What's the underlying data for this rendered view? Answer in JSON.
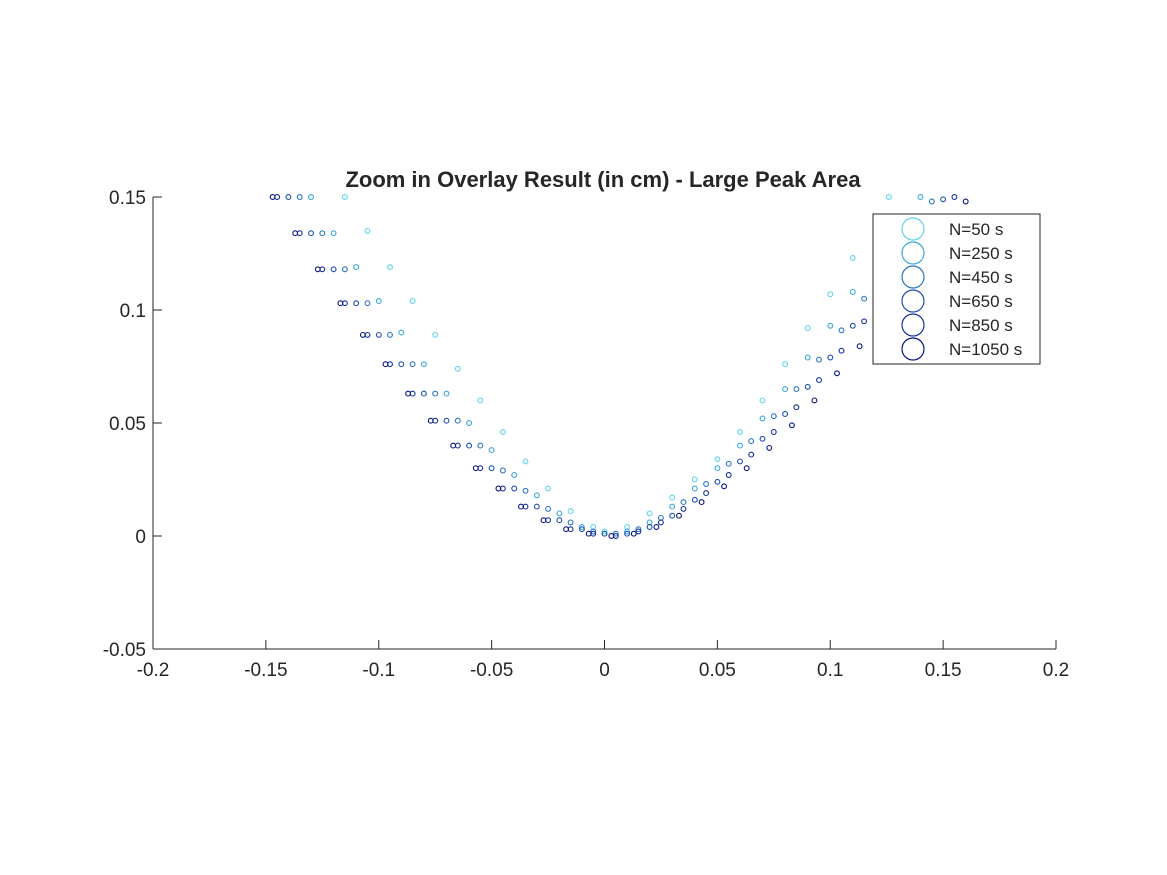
{
  "chart_data": {
    "type": "scatter",
    "title": "Zoom in Overlay Result (in cm) - Large Peak Area",
    "xlabel": "",
    "ylabel": "",
    "xlim": [
      -0.2,
      0.2
    ],
    "ylim": [
      -0.05,
      0.15
    ],
    "x_ticks": [
      "-0.2",
      "-0.15",
      "-0.1",
      "-0.05",
      "0",
      "0.05",
      "0.1",
      "0.15",
      "0.2"
    ],
    "y_ticks": [
      "-0.05",
      "0",
      "0.05",
      "0.1",
      "0.15"
    ],
    "x_tick_values": [
      -0.2,
      -0.15,
      -0.1,
      -0.05,
      0,
      0.05,
      0.1,
      0.15,
      0.2
    ],
    "y_tick_values": [
      -0.05,
      0,
      0.05,
      0.1,
      0.15
    ],
    "grid": false,
    "box": false,
    "legend_position": "top-right",
    "marker": "circle-open",
    "series": [
      {
        "name": "N=50 s",
        "color": "#5fd3f0",
        "x": [
          -0.115,
          -0.105,
          -0.095,
          -0.085,
          -0.075,
          -0.065,
          -0.055,
          -0.045,
          -0.035,
          -0.025,
          -0.015,
          -0.005,
          0.0,
          0.01,
          0.02,
          0.03,
          0.04,
          0.05,
          0.06,
          0.07,
          0.08,
          0.09,
          0.1,
          0.11,
          0.12,
          0.126
        ],
        "y": [
          0.15,
          0.135,
          0.119,
          0.104,
          0.089,
          0.074,
          0.06,
          0.046,
          0.033,
          0.021,
          0.011,
          0.004,
          0.002,
          0.004,
          0.01,
          0.017,
          0.025,
          0.034,
          0.046,
          0.06,
          0.076,
          0.092,
          0.107,
          0.123,
          0.14,
          0.15
        ]
      },
      {
        "name": "N=250 s",
        "color": "#3aa8dc",
        "x": [
          -0.13,
          -0.12,
          -0.11,
          -0.1,
          -0.09,
          -0.08,
          -0.07,
          -0.06,
          -0.05,
          -0.04,
          -0.03,
          -0.02,
          -0.01,
          0.0,
          0.01,
          0.02,
          0.03,
          0.04,
          0.05,
          0.06,
          0.07,
          0.08,
          0.09,
          0.1,
          0.11,
          0.12,
          0.13,
          0.14
        ],
        "y": [
          0.15,
          0.134,
          0.119,
          0.104,
          0.09,
          0.076,
          0.063,
          0.05,
          0.038,
          0.027,
          0.018,
          0.01,
          0.004,
          0.001,
          0.002,
          0.006,
          0.013,
          0.021,
          0.03,
          0.04,
          0.052,
          0.065,
          0.079,
          0.093,
          0.108,
          0.123,
          0.138,
          0.15
        ]
      },
      {
        "name": "N=450 s",
        "color": "#2b74c0",
        "x": [
          -0.135,
          -0.125,
          -0.115,
          -0.105,
          -0.095,
          -0.085,
          -0.075,
          -0.065,
          -0.055,
          -0.045,
          -0.035,
          -0.025,
          -0.015,
          -0.005,
          0.005,
          0.015,
          0.025,
          0.035,
          0.045,
          0.055,
          0.065,
          0.075,
          0.085,
          0.095,
          0.105,
          0.115,
          0.125,
          0.135,
          0.145
        ],
        "y": [
          0.15,
          0.134,
          0.118,
          0.103,
          0.089,
          0.076,
          0.063,
          0.051,
          0.04,
          0.029,
          0.02,
          0.012,
          0.006,
          0.002,
          0.001,
          0.003,
          0.008,
          0.015,
          0.023,
          0.032,
          0.042,
          0.053,
          0.065,
          0.078,
          0.091,
          0.105,
          0.119,
          0.134,
          0.148
        ]
      },
      {
        "name": "N=650 s",
        "color": "#1e4fb0",
        "x": [
          -0.14,
          -0.13,
          -0.12,
          -0.11,
          -0.1,
          -0.09,
          -0.08,
          -0.07,
          -0.06,
          -0.05,
          -0.04,
          -0.03,
          -0.02,
          -0.01,
          0.0,
          0.01,
          0.02,
          0.03,
          0.04,
          0.05,
          0.06,
          0.07,
          0.08,
          0.09,
          0.1,
          0.11,
          0.12,
          0.13,
          0.14,
          0.15
        ],
        "y": [
          0.15,
          0.134,
          0.118,
          0.103,
          0.089,
          0.076,
          0.063,
          0.051,
          0.04,
          0.03,
          0.021,
          0.013,
          0.007,
          0.003,
          0.001,
          0.001,
          0.004,
          0.009,
          0.016,
          0.024,
          0.033,
          0.043,
          0.054,
          0.066,
          0.079,
          0.093,
          0.107,
          0.121,
          0.135,
          0.149
        ]
      },
      {
        "name": "N=850 s",
        "color": "#12309a",
        "x": [
          -0.145,
          -0.135,
          -0.125,
          -0.115,
          -0.105,
          -0.095,
          -0.085,
          -0.075,
          -0.065,
          -0.055,
          -0.045,
          -0.035,
          -0.025,
          -0.015,
          -0.005,
          0.005,
          0.015,
          0.025,
          0.035,
          0.045,
          0.055,
          0.065,
          0.075,
          0.085,
          0.095,
          0.105,
          0.115,
          0.125,
          0.135,
          0.145,
          0.155
        ],
        "y": [
          0.15,
          0.134,
          0.118,
          0.103,
          0.089,
          0.076,
          0.063,
          0.051,
          0.04,
          0.03,
          0.021,
          0.013,
          0.007,
          0.003,
          0.001,
          0.0,
          0.002,
          0.006,
          0.012,
          0.019,
          0.027,
          0.036,
          0.046,
          0.057,
          0.069,
          0.082,
          0.095,
          0.109,
          0.123,
          0.137,
          0.15
        ]
      },
      {
        "name": "N=1050 s",
        "color": "#06157f",
        "x": [
          -0.147,
          -0.137,
          -0.127,
          -0.117,
          -0.107,
          -0.097,
          -0.087,
          -0.077,
          -0.067,
          -0.057,
          -0.047,
          -0.037,
          -0.027,
          -0.017,
          -0.007,
          0.003,
          0.013,
          0.023,
          0.033,
          0.043,
          0.053,
          0.063,
          0.073,
          0.083,
          0.093,
          0.103,
          0.113,
          0.123,
          0.133,
          0.143,
          0.153,
          0.16
        ],
        "y": [
          0.15,
          0.134,
          0.118,
          0.103,
          0.089,
          0.076,
          0.063,
          0.051,
          0.04,
          0.03,
          0.021,
          0.013,
          0.007,
          0.003,
          0.001,
          0.0,
          0.001,
          0.004,
          0.009,
          0.015,
          0.022,
          0.03,
          0.039,
          0.049,
          0.06,
          0.072,
          0.084,
          0.097,
          0.11,
          0.124,
          0.138,
          0.148
        ]
      }
    ]
  }
}
